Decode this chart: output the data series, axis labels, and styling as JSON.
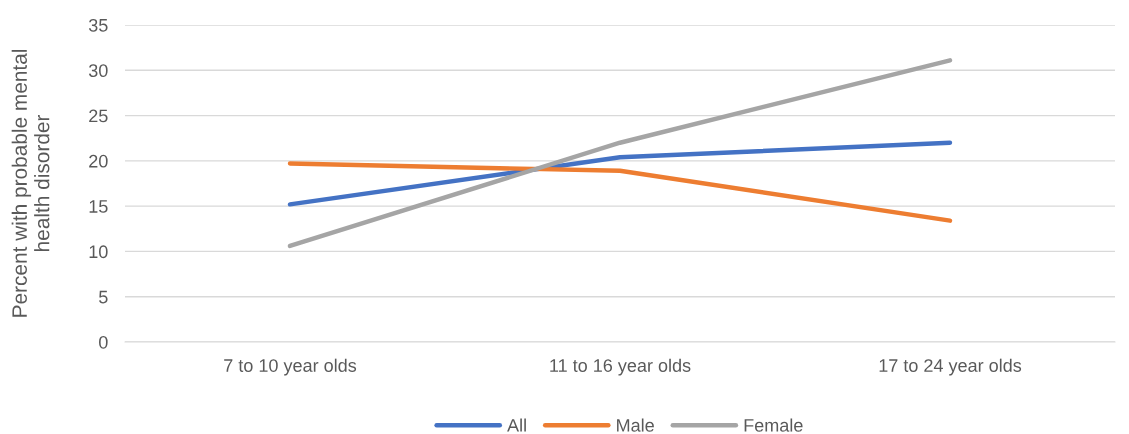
{
  "chart_data": {
    "type": "line",
    "ylabel": "Percent with probable mental health disorder",
    "categories": [
      "7 to 10 year olds",
      "11 to 16 year olds",
      "17 to 24 year olds"
    ],
    "series": [
      {
        "name": "All",
        "color": "#4472c4",
        "values": [
          15.2,
          20.4,
          22.0
        ]
      },
      {
        "name": "Male",
        "color": "#ed7d31",
        "values": [
          19.7,
          18.9,
          13.4
        ]
      },
      {
        "name": "Female",
        "color": "#a5a5a5",
        "values": [
          10.6,
          22.0,
          31.1
        ]
      }
    ],
    "ylim": [
      0,
      35
    ],
    "yticks": [
      0,
      5,
      10,
      15,
      20,
      25,
      30,
      35
    ],
    "grid": "y",
    "legend": "bottom",
    "marker": "none",
    "line_style": "solid"
  }
}
